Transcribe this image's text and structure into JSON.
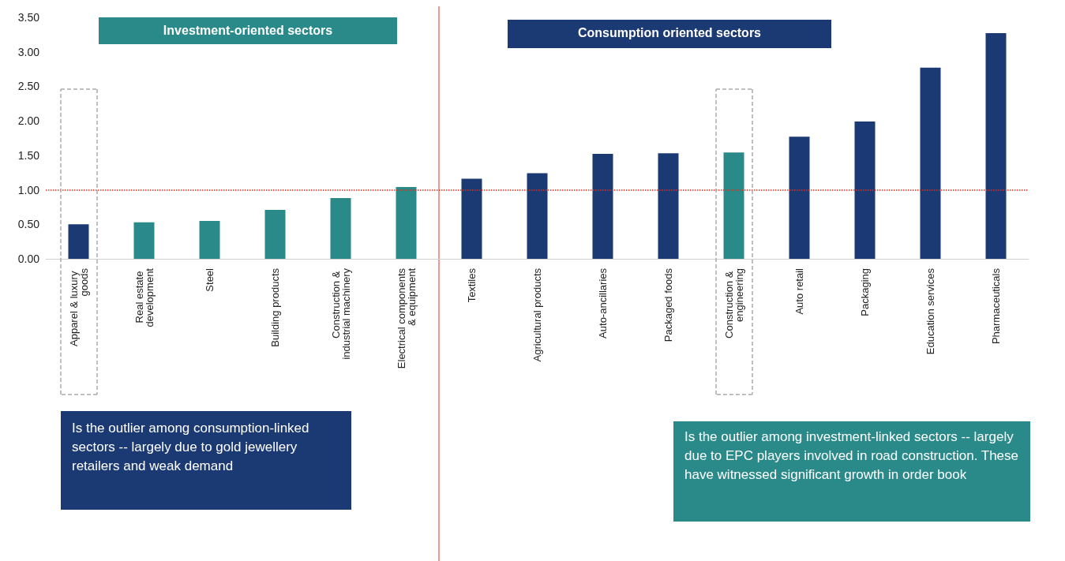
{
  "chart_data": {
    "type": "bar",
    "categories": [
      "Apparel & luxury goods",
      "Real estate development",
      "Steel",
      "Building products",
      "Construction & industrial machinery",
      "Electrical components & equipment",
      "Textiles",
      "Agricultural products",
      "Auto-ancillaries",
      "Packaged foods",
      "Construction & engineering",
      "Auto retail",
      "Packaging",
      "Education services",
      "Pharmaceuticals"
    ],
    "values": [
      0.5,
      0.53,
      0.55,
      0.71,
      0.88,
      1.04,
      1.16,
      1.24,
      1.52,
      1.53,
      1.54,
      1.77,
      1.99,
      2.77,
      3.27
    ],
    "colors": [
      "#1b3a73",
      "#2a8a8a",
      "#2a8a8a",
      "#2a8a8a",
      "#2a8a8a",
      "#2a8a8a",
      "#1b3a73",
      "#1b3a73",
      "#1b3a73",
      "#1b3a73",
      "#2a8a8a",
      "#1b3a73",
      "#1b3a73",
      "#1b3a73",
      "#1b3a73"
    ],
    "ylim": [
      0,
      3.5
    ],
    "yticks": [
      {
        "value": 0,
        "label": "0.00"
      },
      {
        "value": 0.5,
        "label": "0.50"
      },
      {
        "value": 1,
        "label": "1.00"
      },
      {
        "value": 1.5,
        "label": "1.50"
      },
      {
        "value": 2,
        "label": "2.00"
      },
      {
        "value": 2.5,
        "label": "2.50"
      },
      {
        "value": 3,
        "label": "3.00"
      },
      {
        "value": 3.5,
        "label": "3.50"
      }
    ],
    "grid": false,
    "ref_lines": [
      {
        "axis": "y",
        "value": 1,
        "color": "#e0301e",
        "line_style": "dotted"
      },
      {
        "axis": "x",
        "value": "Textiles",
        "color": "#e0301e",
        "line_style": "solid"
      }
    ],
    "annotations": [
      "Investment-oriented sectors",
      "Consumption oriented sectors",
      "Is the outlier among consumption-linked sectors -- largely due to gold jewellery retailers and weak demand",
      "Is the outlier among investment-linked sectors  -- largely due to EPC players involved in road construction. These have witnessed significant growth in order book"
    ]
  }
}
